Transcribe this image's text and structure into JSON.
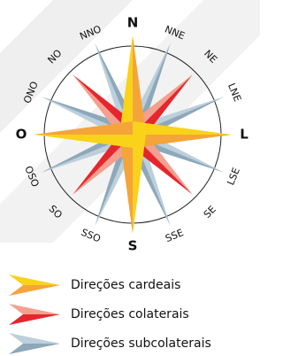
{
  "compass": {
    "labels": [
      "N",
      "NNE",
      "NE",
      "LNE",
      "L",
      "LSE",
      "SE",
      "SSE",
      "S",
      "SSO",
      "SO",
      "OSO",
      "O",
      "ONO",
      "NO",
      "NNO"
    ]
  },
  "legend": {
    "items": [
      "Direções cardeais",
      "Direções colaterais",
      "Direções subcolaterais"
    ]
  }
}
